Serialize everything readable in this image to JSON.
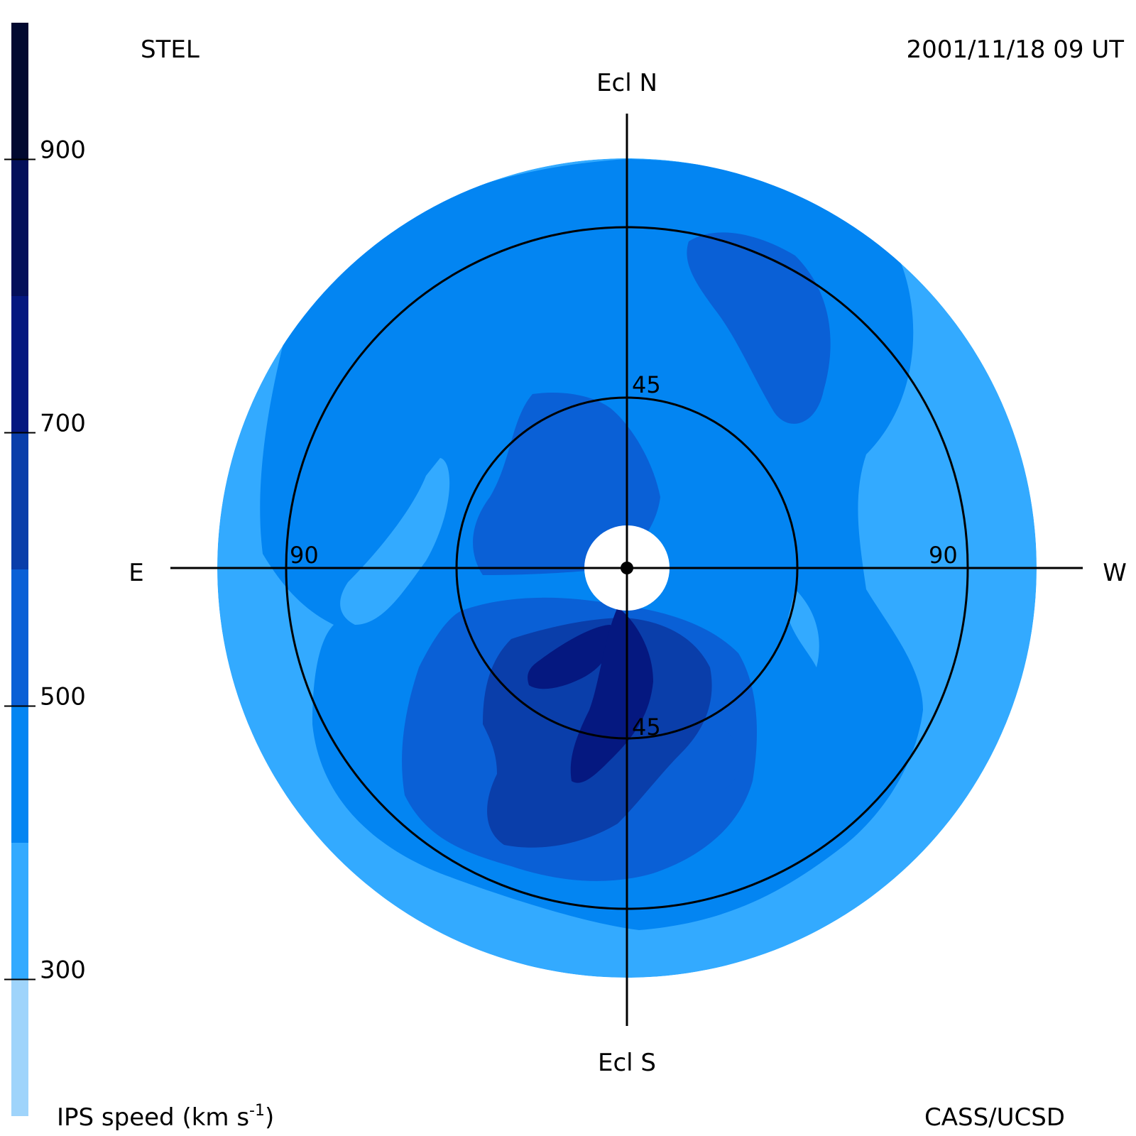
{
  "header": {
    "station": "STEL",
    "datetime": "2001/11/18 09 UT"
  },
  "footer": {
    "colorbar_label": "IPS speed (km s",
    "colorbar_label_sup": "-1",
    "colorbar_label_end": ")",
    "credit": "CASS/UCSD"
  },
  "chart_data": {
    "type": "heatmap",
    "projection": "polar sky map (elongation)",
    "directions": {
      "north": "Ecl N",
      "south": "Ecl S",
      "east": "E",
      "west": "W"
    },
    "ring_labels": {
      "inner_north": "45",
      "inner_south": "45",
      "outer_east": "90",
      "outer_west": "90"
    },
    "rings_elongation_deg": [
      45,
      90
    ],
    "colorbar": {
      "label": "IPS speed (km s-1)",
      "range": [
        200,
        1000
      ],
      "tick_values": [
        300,
        500,
        700,
        900
      ],
      "tick_labels": [
        "300",
        "500",
        "700",
        "900"
      ],
      "levels": [
        {
          "from": 200,
          "to": 300,
          "color": "#9fd4fb"
        },
        {
          "from": 300,
          "to": 400,
          "color": "#33aaff"
        },
        {
          "from": 400,
          "to": 500,
          "color": "#0385f2"
        },
        {
          "from": 500,
          "to": 600,
          "color": "#0a60d6"
        },
        {
          "from": 600,
          "to": 700,
          "color": "#0a3eaa"
        },
        {
          "from": 700,
          "to": 800,
          "color": "#051880"
        },
        {
          "from": 800,
          "to": 900,
          "color": "#04105a"
        },
        {
          "from": 900,
          "to": 1000,
          "color": "#020a30"
        }
      ]
    },
    "regions": [
      {
        "speed_band": "300-400",
        "location": "outer edge of map"
      },
      {
        "speed_band": "400-500",
        "location": "bulk of map"
      },
      {
        "speed_band": "500-600",
        "location": "north-west streak, east of Sun, south-central lobe"
      },
      {
        "speed_band": "600-700",
        "location": "south of Sun"
      },
      {
        "speed_band": "700-800",
        "location": "south of Sun, near 45 deg"
      }
    ]
  }
}
